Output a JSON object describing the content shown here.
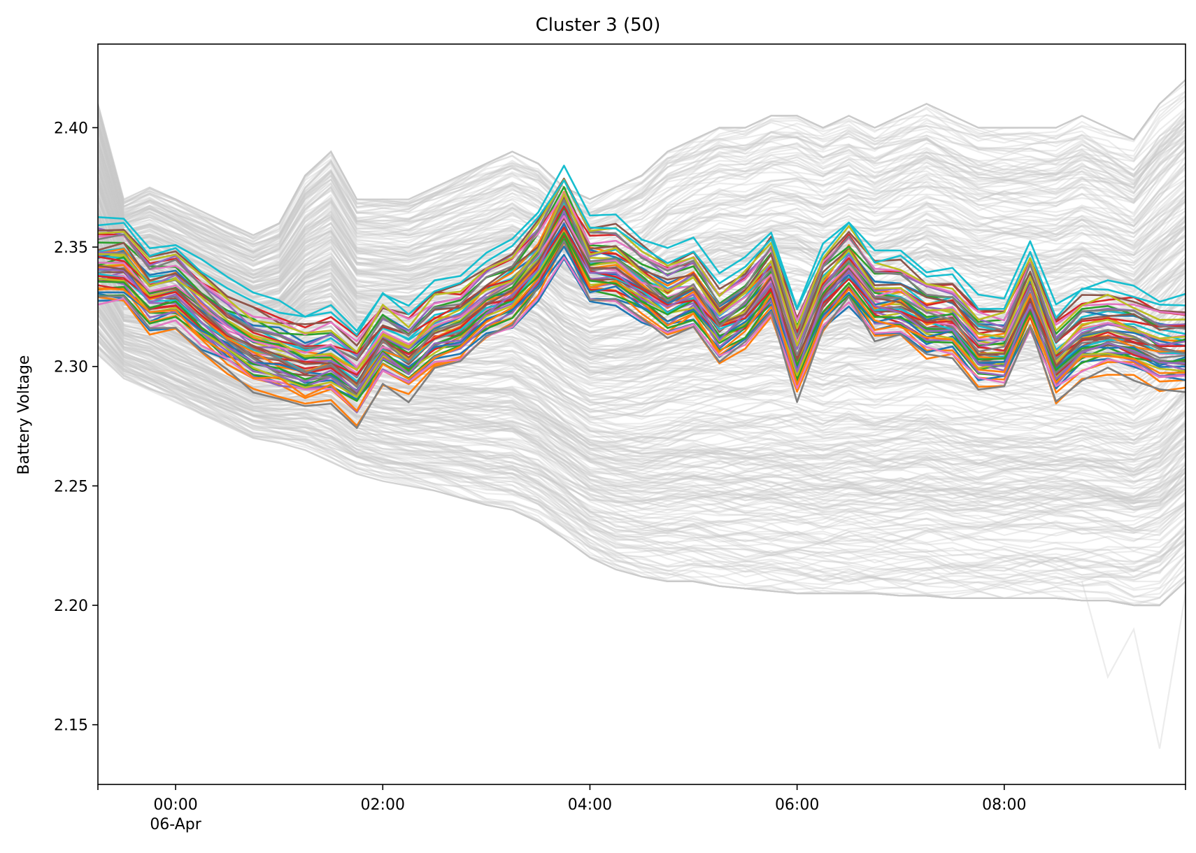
{
  "chart_data": {
    "type": "line",
    "title": "Cluster 3 (50)",
    "xlabel": "",
    "ylabel": "Battery Voltage",
    "x_axis_kind": "datetime",
    "x_range": [
      "2021-04-05T23:15",
      "2021-04-06T09:45"
    ],
    "ylim": [
      2.125,
      2.435
    ],
    "y_ticks": [
      "2.15",
      "2.20",
      "2.25",
      "2.30",
      "2.35",
      "2.40"
    ],
    "x_ticks": [
      {
        "at": "2021-04-06T00:00",
        "label": "00:00",
        "sublabel": "06-Apr"
      },
      {
        "at": "2021-04-06T02:00",
        "label": "02:00",
        "sublabel": ""
      },
      {
        "at": "2021-04-06T04:00",
        "label": "04:00",
        "sublabel": ""
      },
      {
        "at": "2021-04-06T06:00",
        "label": "06:00",
        "sublabel": ""
      },
      {
        "at": "2021-04-06T08:00",
        "label": "08:00",
        "sublabel": ""
      }
    ],
    "grid": false,
    "legend": "none",
    "x": [
      "23:15",
      "23:30",
      "23:45",
      "00:00",
      "00:15",
      "00:30",
      "00:45",
      "01:00",
      "01:15",
      "01:30",
      "01:45",
      "02:00",
      "02:15",
      "02:30",
      "02:45",
      "03:00",
      "03:15",
      "03:30",
      "03:45",
      "04:00",
      "04:15",
      "04:30",
      "04:45",
      "05:00",
      "05:15",
      "05:30",
      "05:45",
      "06:00",
      "06:15",
      "06:30",
      "06:45",
      "07:00",
      "07:15",
      "07:30",
      "07:45",
      "08:00",
      "08:15",
      "08:30",
      "08:45",
      "09:00",
      "09:15",
      "09:30",
      "09:45"
    ],
    "x_start": "2021-04-05T23:15",
    "x_step_minutes": 15,
    "background_color": "#c8c8c8",
    "background_series_count": 350,
    "background_envelope": {
      "upper": [
        2.41,
        2.37,
        2.375,
        2.37,
        2.365,
        2.36,
        2.355,
        2.36,
        2.38,
        2.39,
        2.37,
        2.37,
        2.37,
        2.375,
        2.38,
        2.385,
        2.39,
        2.385,
        2.375,
        2.37,
        2.375,
        2.38,
        2.39,
        2.395,
        2.4,
        2.4,
        2.405,
        2.405,
        2.4,
        2.405,
        2.4,
        2.405,
        2.41,
        2.405,
        2.4,
        2.4,
        2.4,
        2.4,
        2.405,
        2.4,
        2.395,
        2.41,
        2.42
      ],
      "lower": [
        2.305,
        2.295,
        2.29,
        2.285,
        2.28,
        2.275,
        2.27,
        2.268,
        2.265,
        2.26,
        2.255,
        2.252,
        2.25,
        2.248,
        2.245,
        2.242,
        2.24,
        2.235,
        2.228,
        2.22,
        2.215,
        2.212,
        2.21,
        2.21,
        2.208,
        2.207,
        2.206,
        2.205,
        2.205,
        2.205,
        2.205,
        2.204,
        2.204,
        2.203,
        2.203,
        2.203,
        2.203,
        2.203,
        2.202,
        2.202,
        2.2,
        2.2,
        2.21
      ],
      "outlier": {
        "from_index": 38,
        "values": [
          2.21,
          2.17,
          2.19,
          2.14,
          2.205,
          2.172,
          2.2
        ]
      }
    },
    "cluster_template": [
      0.0,
      0.0,
      -0.012,
      -0.01,
      -0.02,
      -0.028,
      -0.035,
      -0.038,
      -0.042,
      -0.04,
      -0.048,
      -0.032,
      -0.038,
      -0.028,
      -0.025,
      -0.015,
      -0.01,
      0.002,
      0.022,
      0.0,
      0.0,
      -0.008,
      -0.015,
      -0.01,
      -0.025,
      -0.018,
      -0.005,
      -0.038,
      -0.012,
      0.0,
      -0.015,
      -0.015,
      -0.022,
      -0.022,
      -0.035,
      -0.035,
      -0.012,
      -0.04,
      -0.03,
      -0.028,
      -0.03,
      -0.035,
      -0.035
    ],
    "cluster_offsets": [
      0.33,
      0.332,
      0.334,
      0.336,
      0.338,
      0.34,
      0.342,
      0.344,
      0.346,
      0.348,
      0.326,
      0.328,
      0.331,
      0.333,
      0.335,
      0.337,
      0.339,
      0.341,
      0.343,
      0.345,
      0.347,
      0.349,
      0.352,
      0.354,
      0.356,
      0.358,
      0.327,
      0.329,
      0.336,
      0.338,
      0.34,
      0.342,
      0.344,
      0.346,
      0.348,
      0.35,
      0.353,
      0.355,
      0.357,
      0.359,
      0.332,
      0.334,
      0.336,
      0.338,
      0.34,
      0.342,
      0.344,
      0.346,
      0.348,
      0.362
    ],
    "series_colors": [
      "#1f77b4",
      "#ff7f0e",
      "#2ca02c",
      "#d62728",
      "#9467bd",
      "#8c564b",
      "#e377c2",
      "#7f7f7f",
      "#bcbd22",
      "#17becf"
    ]
  }
}
